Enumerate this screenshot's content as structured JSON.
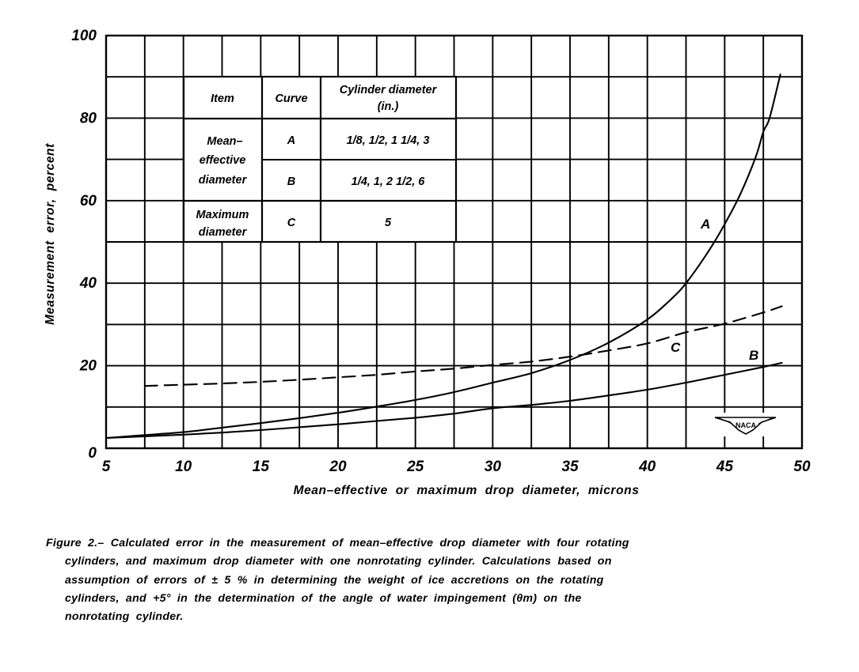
{
  "chart_data": {
    "type": "line",
    "title": "",
    "xlabel": "Mean-effective or maximum drop diameter, microns",
    "ylabel": "Measurement error, percent",
    "xlim": [
      5,
      50
    ],
    "ylim": [
      0,
      100
    ],
    "x_ticks": [
      5,
      10,
      15,
      20,
      25,
      30,
      35,
      40,
      45,
      50
    ],
    "y_ticks": [
      0,
      20,
      40,
      60,
      80,
      100
    ],
    "grid": true,
    "grid_x_step": 2.5,
    "grid_y_step": 10,
    "legend_position": "inset table, upper left",
    "series": [
      {
        "name": "A",
        "style": "solid",
        "label_pos": [
          43.9,
          54
        ],
        "x": [
          5,
          7.5,
          10,
          12.5,
          15,
          17.5,
          20,
          22.5,
          25,
          27.5,
          30,
          32.5,
          35,
          37.5,
          40,
          41.5,
          42.5,
          44,
          45,
          46,
          47,
          47.5,
          47.9,
          48.6
        ],
        "y": [
          2.5,
          3.2,
          3.9,
          5.0,
          6.1,
          7.3,
          8.6,
          10.1,
          11.7,
          13.6,
          15.9,
          18.2,
          21.4,
          25.6,
          31.2,
          36.0,
          40.0,
          48.0,
          54.3,
          61.5,
          70.5,
          76.7,
          80.0,
          90.6
        ]
      },
      {
        "name": "B",
        "style": "solid",
        "label_pos": [
          46.5,
          22.5
        ],
        "x": [
          5,
          7.5,
          10,
          12.5,
          15,
          17.5,
          20,
          22.5,
          25,
          27.5,
          30,
          32.5,
          35,
          37.5,
          40,
          42.5,
          45,
          47.5,
          48.7
        ],
        "y": [
          2.5,
          2.9,
          3.3,
          3.8,
          4.4,
          5.1,
          5.8,
          6.6,
          7.4,
          8.4,
          9.7,
          10.5,
          11.5,
          12.8,
          14.2,
          15.9,
          17.8,
          19.7,
          20.7
        ]
      },
      {
        "name": "C",
        "style": "dashed",
        "label_pos": [
          41.7,
          23.8
        ],
        "x": [
          7.5,
          10,
          12.5,
          15,
          17.5,
          20,
          22.5,
          25,
          27.5,
          30,
          32.5,
          35,
          37.5,
          40,
          42.5,
          45,
          47.5,
          48.7
        ],
        "y": [
          15.1,
          15.4,
          15.7,
          16.1,
          16.6,
          17.2,
          17.8,
          18.6,
          19.3,
          20.2,
          21.0,
          22.2,
          23.7,
          25.4,
          28.1,
          30.2,
          32.9,
          34.4
        ]
      }
    ],
    "inset_table": {
      "headers": [
        "Item",
        "Curve",
        "Cylinder diameter (in.)"
      ],
      "rows": [
        {
          "item": "Mean-effective diameter",
          "curve": "A",
          "cylinder_diameter": "1/8, 1/2, 1 1/4, 3"
        },
        {
          "item": "Mean-effective diameter",
          "curve": "B",
          "cylinder_diameter": "1/4, 1, 2 1/2, 6"
        },
        {
          "item": "Maximum diameter",
          "curve": "C",
          "cylinder_diameter": "5"
        }
      ]
    },
    "annotations": [
      "NACA logo, lower right"
    ]
  },
  "axes": {
    "x_tick_labels": [
      "5",
      "10",
      "15",
      "20",
      "25",
      "30",
      "35",
      "40",
      "45",
      "50"
    ],
    "y_tick_labels": [
      "0",
      "20",
      "40",
      "60",
      "80",
      "100"
    ],
    "x_title": "Mean–effective  or  maximum  drop  diameter,  microns",
    "y_title": "Measurement  error,  percent"
  },
  "table": {
    "header_item": "Item",
    "header_curve": "Curve",
    "header_diam_1": "Cylinder diameter",
    "header_diam_2": "(in.)",
    "row1_item_1": "Mean–",
    "row1_item_2": "effective",
    "row1_item_3": "diameter",
    "row_a_curve": "A",
    "row_a_diam": "1/8,  1/2,  1 1/4,  3",
    "row_b_curve": "B",
    "row_b_diam": "1/4,  1,  2 1/2,  6",
    "row_c_item_1": "Maximum",
    "row_c_item_2": "diameter",
    "row_c_curve": "C",
    "row_c_diam": "5"
  },
  "curve_labels": {
    "a": "A",
    "b": "B",
    "c": "C"
  },
  "logo": {
    "text": "NACA"
  },
  "caption": {
    "lines": [
      "Figure 2.– Calculated error in the measurement of mean–effective drop diameter with four rotating",
      "cylinders, and maximum drop diameter with one nonrotating cylinder. Calculations based on",
      "assumption of errors of ± 5 % in determining the weight of ice accretions on the rotating",
      "cylinders, and +5° in the determination of the angle of water impingement (θm) on the",
      "nonrotating  cylinder."
    ]
  }
}
